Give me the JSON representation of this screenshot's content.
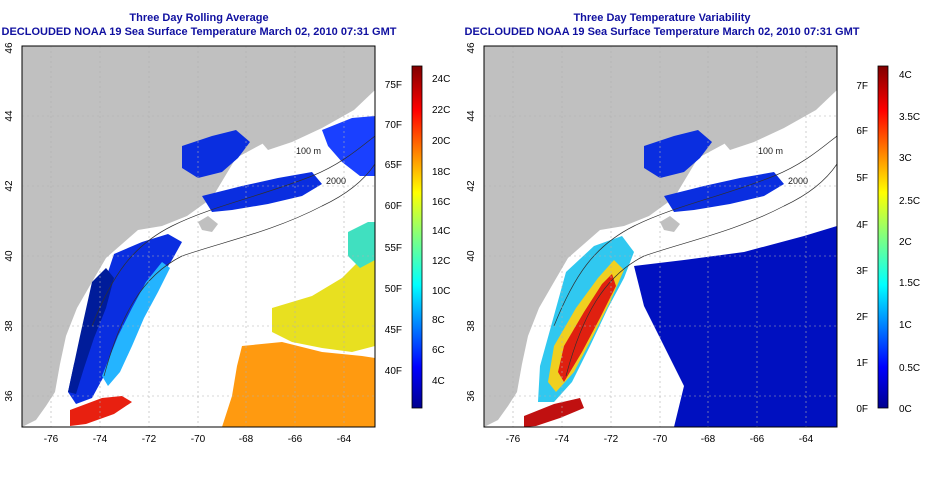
{
  "panels": [
    {
      "title": "Three Day Rolling Average",
      "subtitle": "DECLOUDED NOAA 19 Sea Surface Temperature March 02, 2010 07:31 GMT",
      "x_ticks": [
        "-76",
        "-74",
        "-72",
        "-70",
        "-68",
        "-66",
        "-64"
      ],
      "y_ticks": [
        "36",
        "38",
        "40",
        "42",
        "44",
        "46"
      ],
      "contours": [
        "100 m",
        "2000"
      ],
      "colorbar": {
        "right_labels": [
          "24C",
          "22C",
          "20C",
          "18C",
          "16C",
          "14C",
          "12C",
          "10C",
          "8C",
          "6C",
          "4C"
        ],
        "left_labels": [
          "75F",
          "70F",
          "65F",
          "60F",
          "55F",
          "50F",
          "45F",
          "40F"
        ]
      }
    },
    {
      "title": "Three Day Temperature Variability",
      "subtitle": "DECLOUDED NOAA 19 Sea Surface Temperature March 02, 2010 07:31 GMT",
      "x_ticks": [
        "-76",
        "-74",
        "-72",
        "-70",
        "-68",
        "-66",
        "-64"
      ],
      "y_ticks": [
        "36",
        "38",
        "40",
        "42",
        "44",
        "46"
      ],
      "contours": [
        "100 m",
        "2000"
      ],
      "colorbar": {
        "right_labels": [
          "4C",
          "3.5C",
          "3C",
          "2.5C",
          "2C",
          "1.5C",
          "1C",
          "0.5C",
          "0C"
        ],
        "left_labels": [
          "7F",
          "6F",
          "5F",
          "4F",
          "3F",
          "2F",
          "1F",
          "0F"
        ]
      }
    }
  ],
  "colors": {
    "title": "#1010a0",
    "land": "#c0c0c0",
    "ocean_no_data": "#ffffff",
    "jet_low": "#00008f",
    "jet_high": "#800000"
  }
}
